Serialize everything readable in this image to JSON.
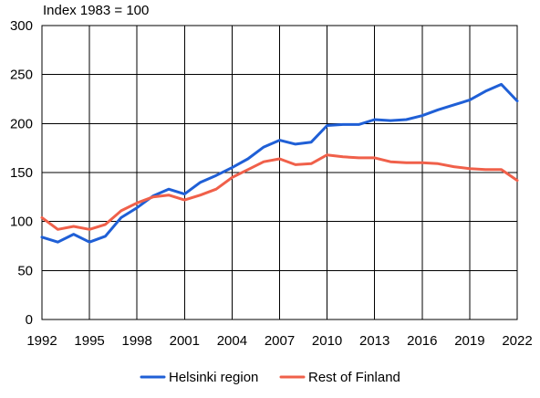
{
  "chart_data": {
    "type": "line",
    "unit_label": "Index 1983 = 100",
    "ylim": [
      0,
      300
    ],
    "y_ticks": [
      0,
      50,
      100,
      150,
      200,
      250,
      300
    ],
    "xlim": [
      1992,
      2022
    ],
    "x_ticks": [
      1992,
      1995,
      1998,
      2001,
      2004,
      2007,
      2010,
      2013,
      2016,
      2019,
      2022
    ],
    "grid": true,
    "legend_position": "bottom",
    "x": [
      1992,
      1993,
      1994,
      1995,
      1996,
      1997,
      1998,
      1999,
      2000,
      2001,
      2002,
      2003,
      2004,
      2005,
      2006,
      2007,
      2008,
      2009,
      2010,
      2011,
      2012,
      2013,
      2014,
      2015,
      2016,
      2017,
      2018,
      2019,
      2020,
      2021,
      2022
    ],
    "series": [
      {
        "name": "Helsinki region",
        "color": "#1f5fd6",
        "values": [
          84,
          79,
          87,
          79,
          85,
          104,
          114,
          126,
          133,
          128,
          140,
          147,
          155,
          164,
          176,
          183,
          179,
          181,
          198,
          199,
          199,
          204,
          203,
          204,
          208,
          214,
          219,
          224,
          233,
          240,
          223
        ]
      },
      {
        "name": "Rest of Finland",
        "color": "#f0604a",
        "values": [
          104,
          92,
          95,
          92,
          97,
          111,
          119,
          125,
          127,
          122,
          127,
          133,
          145,
          153,
          161,
          164,
          158,
          159,
          168,
          166,
          165,
          165,
          161,
          160,
          160,
          159,
          156,
          154,
          153,
          153,
          142
        ]
      }
    ]
  }
}
